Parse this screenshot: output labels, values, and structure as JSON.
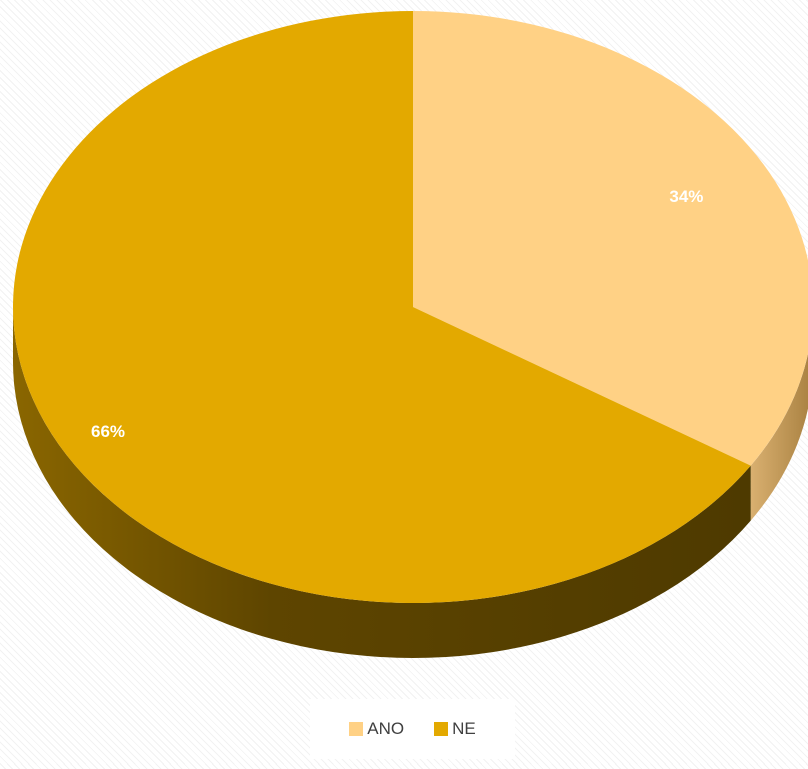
{
  "chart_data": {
    "type": "pie",
    "style": "3d",
    "categories": [
      "ANO",
      "NE"
    ],
    "values": [
      34,
      66
    ],
    "labels": [
      "34%",
      "66%"
    ],
    "colors": [
      "#FFD185",
      "#E3A900"
    ],
    "side_colors": [
      "#C8A064",
      "#5E4500"
    ],
    "title": "",
    "legend": {
      "placement": "bottom",
      "entries": [
        "ANO",
        "NE"
      ]
    }
  }
}
